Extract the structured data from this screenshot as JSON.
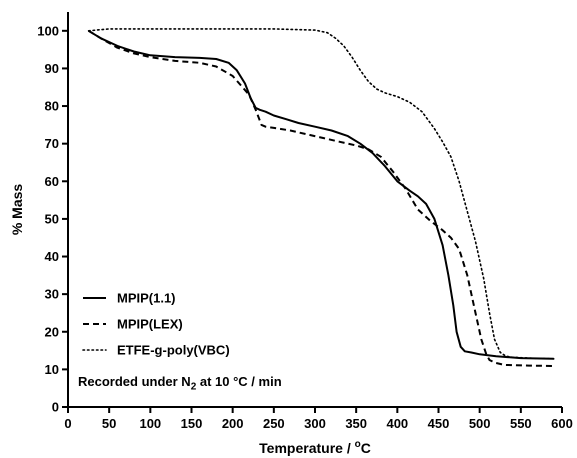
{
  "chart_data": {
    "type": "line",
    "xlabel": {
      "prefix": "Temperature / ",
      "sup": "o",
      "suffix": "C"
    },
    "ylabel": "% Mass",
    "xlim": [
      0,
      600
    ],
    "ylim": [
      0,
      105
    ],
    "xticks": [
      0,
      50,
      100,
      150,
      200,
      250,
      300,
      350,
      400,
      450,
      500,
      550,
      600
    ],
    "yticks": [
      0,
      10,
      20,
      30,
      40,
      50,
      60,
      70,
      80,
      90,
      100
    ],
    "grid": false,
    "legend_placement": "bottom-left",
    "annotation": {
      "prefix": "Recorded under N",
      "sub": "2",
      "suffix": " at 10 °C / min"
    },
    "series": [
      {
        "name": "MPIP(1.1)",
        "style": "solid",
        "color": "#000000",
        "x": [
          25,
          40,
          60,
          80,
          100,
          130,
          160,
          180,
          195,
          205,
          215,
          222,
          228,
          233,
          240,
          250,
          265,
          280,
          300,
          320,
          340,
          355,
          370,
          385,
          400,
          415,
          425,
          435,
          445,
          455,
          462,
          468,
          472,
          477,
          482,
          490,
          500,
          520,
          550,
          590
        ],
        "y": [
          100,
          98,
          96,
          94.5,
          93.5,
          93,
          92.8,
          92.5,
          91.5,
          89.5,
          86,
          82,
          79.5,
          79,
          78.5,
          77.5,
          76.5,
          75.5,
          74.5,
          73.5,
          72,
          70,
          67.5,
          64,
          60,
          57.5,
          56,
          54,
          50,
          43,
          35,
          27,
          20,
          16,
          14.8,
          14.5,
          14,
          13.5,
          13,
          12.8
        ]
      },
      {
        "name": "MPIP(LEX)",
        "style": "dashed",
        "color": "#000000",
        "x": [
          25,
          40,
          60,
          80,
          100,
          130,
          160,
          180,
          200,
          210,
          220,
          228,
          235,
          240,
          250,
          270,
          290,
          310,
          330,
          350,
          365,
          380,
          395,
          410,
          425,
          440,
          455,
          465,
          475,
          485,
          495,
          502,
          508,
          512,
          518,
          530,
          560,
          590
        ],
        "y": [
          100,
          98,
          95.5,
          94,
          93,
          92,
          91.5,
          90.5,
          88,
          85.5,
          83,
          79,
          75,
          74.5,
          74.2,
          73.5,
          72.5,
          71.5,
          70.5,
          69.5,
          68.5,
          66.5,
          62.5,
          58,
          52.5,
          49.5,
          47,
          45,
          42,
          35,
          25,
          18,
          14,
          12.5,
          11.8,
          11.2,
          11,
          10.9
        ]
      },
      {
        "name": "ETFE-g-poly(VBC)",
        "style": "dotted",
        "color": "#000000",
        "x": [
          25,
          50,
          100,
          150,
          200,
          250,
          300,
          315,
          325,
          335,
          345,
          355,
          365,
          375,
          385,
          400,
          415,
          430,
          445,
          455,
          465,
          475,
          485,
          495,
          505,
          512,
          518,
          525,
          532,
          540,
          560,
          590
        ],
        "y": [
          100,
          100.5,
          100.5,
          100.5,
          100.5,
          100.5,
          100.2,
          99.5,
          98,
          96,
          93,
          89.5,
          86.5,
          84.5,
          83.5,
          82.5,
          81,
          78.5,
          74,
          70.5,
          66.5,
          60,
          52,
          44,
          34,
          25,
          18,
          14.5,
          13.5,
          13.2,
          13,
          12.8
        ]
      }
    ]
  }
}
